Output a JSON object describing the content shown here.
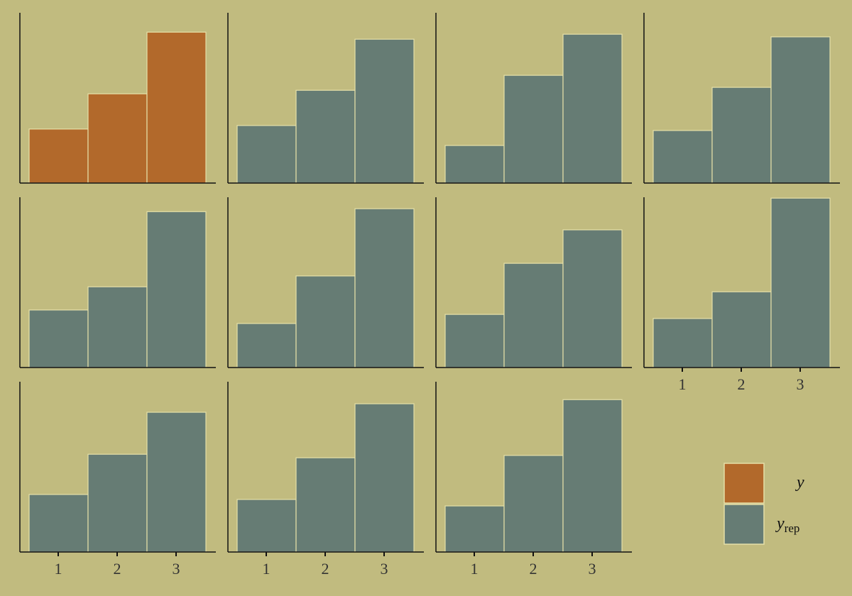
{
  "chart_data": {
    "type": "bar",
    "subtype": "faceted histogram grid",
    "categories": [
      "1",
      "2",
      "3"
    ],
    "ylim": [
      0,
      0.58
    ],
    "y_axis_ticks_shown": false,
    "grid": false,
    "legend_placement": "bottom-right",
    "colors": {
      "background": "#c1bb7f",
      "y": "#b2692b",
      "y_rep": "#667c74",
      "bar_outline": "#e6e0a8",
      "axis": "#111111"
    },
    "legend": [
      {
        "key": "y",
        "label": "y",
        "sub": ""
      },
      {
        "key": "y_rep",
        "label": "y",
        "sub": "rep"
      }
    ],
    "panels": [
      {
        "series": "y",
        "values": [
          0.184,
          0.304,
          0.514
        ]
      },
      {
        "series": "y_rep",
        "values": [
          0.196,
          0.316,
          0.49
        ]
      },
      {
        "series": "y_rep",
        "values": [
          0.128,
          0.367,
          0.507
        ]
      },
      {
        "series": "y_rep",
        "values": [
          0.179,
          0.326,
          0.498
        ]
      },
      {
        "series": "y_rep",
        "values": [
          0.196,
          0.275,
          0.531
        ]
      },
      {
        "series": "y_rep",
        "values": [
          0.15,
          0.312,
          0.541
        ]
      },
      {
        "series": "y_rep",
        "values": [
          0.181,
          0.355,
          0.469
        ]
      },
      {
        "series": "y_rep",
        "values": [
          0.167,
          0.258,
          0.577
        ]
      },
      {
        "series": "y_rep",
        "values": [
          0.196,
          0.333,
          0.476
        ]
      },
      {
        "series": "y_rep",
        "values": [
          0.179,
          0.321,
          0.505
        ]
      },
      {
        "series": "y_rep",
        "values": [
          0.157,
          0.329,
          0.519
        ]
      }
    ]
  }
}
